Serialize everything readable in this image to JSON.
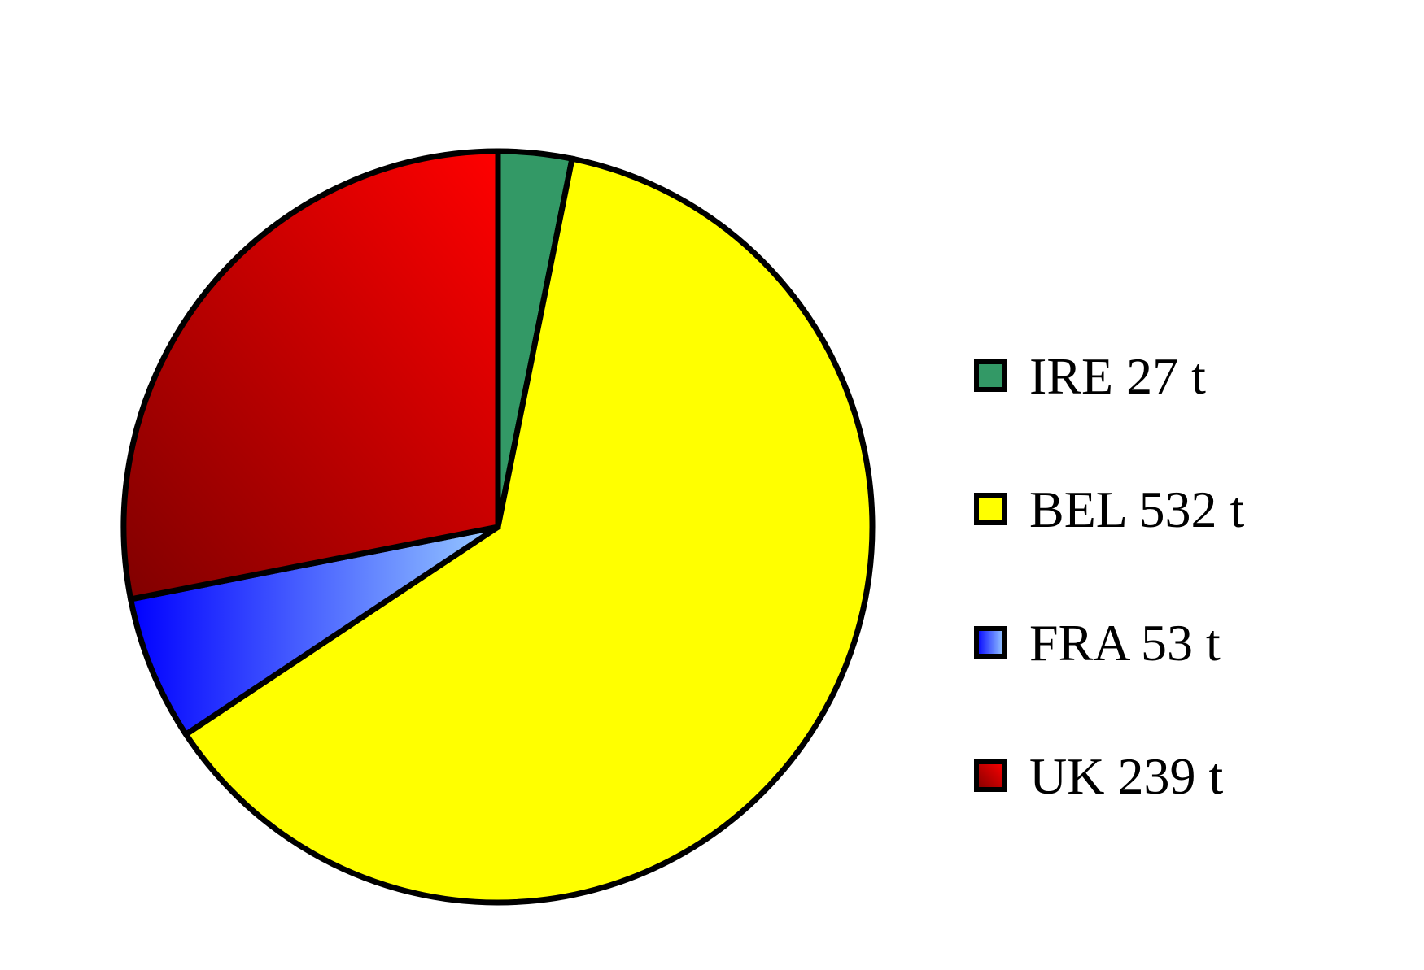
{
  "chart_data": {
    "type": "pie",
    "title": "",
    "slices": [
      {
        "label": "IRE 27 t",
        "category": "IRE",
        "value": 27,
        "unit": "t",
        "color": "#339966",
        "gradient": [
          "#339966",
          "#339966"
        ]
      },
      {
        "label": "BEL 532 t",
        "category": "BEL",
        "value": 532,
        "unit": "t",
        "color": "#FFFF00",
        "gradient": [
          "#FFFF00",
          "#FFFF00"
        ]
      },
      {
        "label": "FRA 53 t",
        "category": "FRA",
        "value": 53,
        "unit": "t",
        "color": "#3366FF",
        "gradient": [
          "#0000FF",
          "#99CCFF"
        ]
      },
      {
        "label": "UK 239 t",
        "category": "UK",
        "value": 239,
        "unit": "t",
        "color": "#CC0000",
        "gradient": [
          "#800000",
          "#FF0000"
        ]
      }
    ],
    "start_angle_deg": 0,
    "direction": "clockwise",
    "legend_position": "right",
    "outline_color": "#000000"
  }
}
